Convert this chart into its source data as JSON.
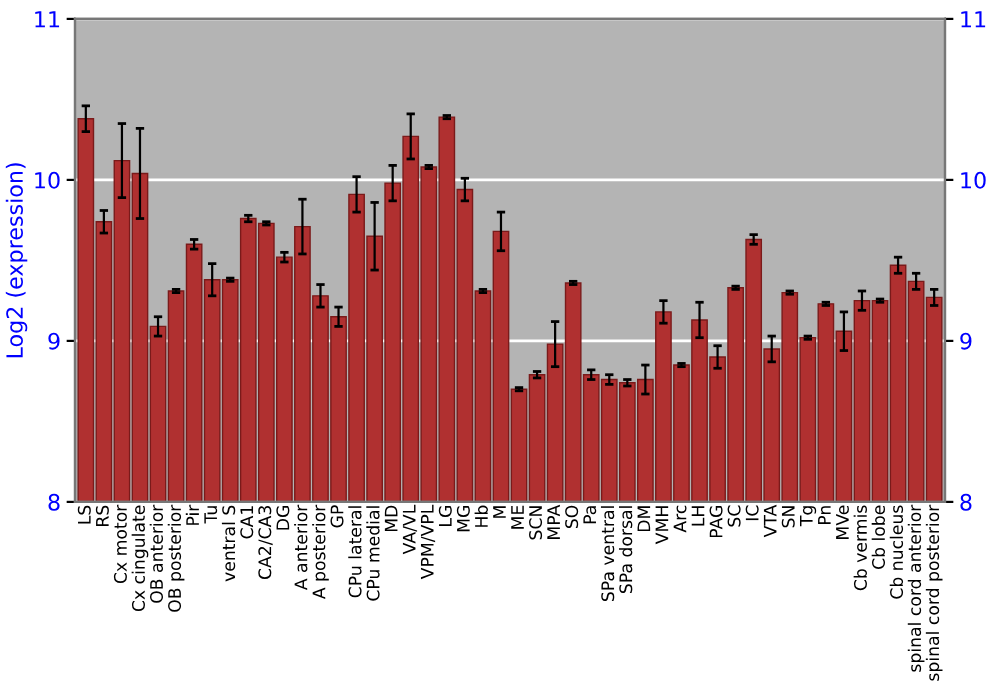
{
  "chart_data": {
    "type": "bar",
    "ylabel": "Log2 (expression)",
    "categories": [
      "LS",
      "RS",
      "Cx motor",
      "Cx cingulate",
      "OB anterior",
      "OB posterior",
      "Pir",
      "Tu",
      "ventral S",
      "CA1",
      "CA2/CA3",
      "DG",
      "A anterior",
      "A posterior",
      "GP",
      "CPu lateral",
      "CPu medial",
      "MD",
      "VA/VL",
      "VPM/VPL",
      "LG",
      "MG",
      "Hb",
      "M",
      "ME",
      "SCN",
      "MPA",
      "SO",
      "Pa",
      "SPa ventral",
      "SPa dorsal",
      "DM",
      "VMH",
      "Arc",
      "LH",
      "PAG",
      "SC",
      "IC",
      "VTA",
      "SN",
      "Tg",
      "Pn",
      "MVe",
      "Cb vermis",
      "Cb lobe",
      "Cb nucleus",
      "spinal cord anterior",
      "spinal cord posterior"
    ],
    "values": [
      10.38,
      9.74,
      10.12,
      10.04,
      9.09,
      9.31,
      9.6,
      9.38,
      9.38,
      9.76,
      9.73,
      9.52,
      9.71,
      9.28,
      9.15,
      9.91,
      9.65,
      9.98,
      10.27,
      10.08,
      10.39,
      9.94,
      9.31,
      9.68,
      8.7,
      8.79,
      8.98,
      9.36,
      8.79,
      8.76,
      8.74,
      8.76,
      9.18,
      8.85,
      9.13,
      8.9,
      9.33,
      9.63,
      8.95,
      9.3,
      9.02,
      9.23,
      9.06,
      9.25,
      9.25,
      9.47,
      9.37,
      9.27
    ],
    "errors": [
      0.08,
      0.07,
      0.23,
      0.28,
      0.06,
      0.01,
      0.03,
      0.1,
      0.01,
      0.02,
      0.01,
      0.03,
      0.17,
      0.07,
      0.06,
      0.11,
      0.21,
      0.11,
      0.14,
      0.01,
      0.01,
      0.07,
      0.01,
      0.12,
      0.01,
      0.02,
      0.14,
      0.01,
      0.03,
      0.03,
      0.02,
      0.09,
      0.07,
      0.01,
      0.11,
      0.07,
      0.01,
      0.03,
      0.08,
      0.01,
      0.01,
      0.01,
      0.12,
      0.06,
      0.01,
      0.05,
      0.05,
      0.05
    ],
    "color": "#b03030",
    "ylim": [
      8,
      11
    ],
    "yticks": [
      8,
      9,
      10,
      11
    ],
    "y2lim": [
      8,
      11
    ],
    "y2ticks": [
      8,
      9,
      10,
      11
    ],
    "grid": "y"
  }
}
